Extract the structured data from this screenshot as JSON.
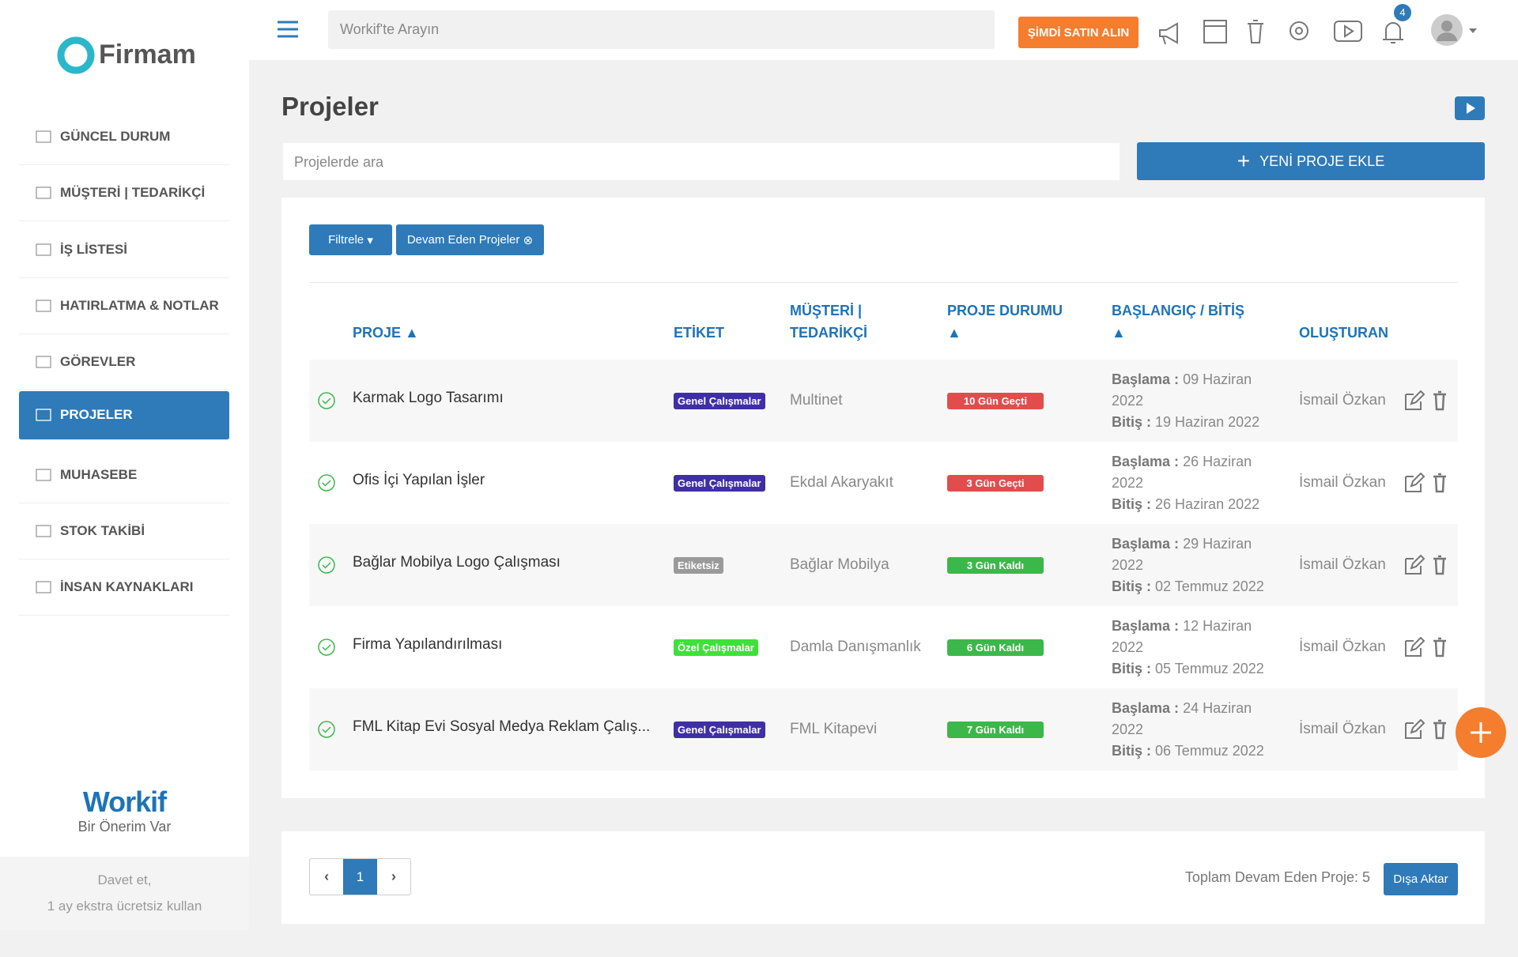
{
  "sidebar": {
    "logo": "Firmam",
    "items": [
      "GÜNCEL DURUM",
      "MÜŞTERİ | TEDARİKÇİ",
      "İŞ LİSTESİ",
      "HATIRLATMA & NOTLAR",
      "GÖREVLER",
      "PROJELER",
      "MUHASEBE",
      "STOK TAKİBİ",
      "İNSAN KAYNAKLARI"
    ],
    "active": 5,
    "brand": "Workif",
    "brand_tagline": "Bir Önerim Var",
    "invite": [
      "Davet et,",
      "1 ay ekstra ücretsiz kullan"
    ]
  },
  "topbar": {
    "search_placeholder": "Workif'te Arayın",
    "buy_button": "ŞİMDİ SATIN ALIN",
    "notification_count": "4"
  },
  "page": {
    "title": "Projeler",
    "search_placeholder": "Projelerde ara",
    "new_button": "YENİ PROJE EKLE",
    "filter_button": "Filtrele",
    "active_filter": "Devam Eden Projeler"
  },
  "table": {
    "headers": [
      "PROJE",
      "ETİKET",
      "MÜŞTERİ | TEDARİKÇİ",
      "PROJE DURUMU",
      "BAŞLANGIÇ / BİTİŞ",
      "OLUŞTURAN"
    ],
    "date_labels": {
      "start": "Başlama :",
      "end": "Bitiş :"
    },
    "rows": [
      {
        "name": "Karmak Logo Tasarımı",
        "tag": "Genel Çalışmalar",
        "tag_color": "#3f2fa6",
        "customer": "Multinet",
        "status": "10 Gün Geçti",
        "status_color": "#e14d4d",
        "start": "09 Haziran 2022",
        "end": "19 Haziran 2022",
        "creator": "İsmail Özkan"
      },
      {
        "name": "Ofis İçi Yapılan İşler",
        "tag": "Genel Çalışmalar",
        "tag_color": "#3f2fa6",
        "customer": "Ekdal Akaryakıt",
        "status": "3 Gün Geçti",
        "status_color": "#e14d4d",
        "start": "26 Haziran 2022",
        "end": "26 Haziran 2022",
        "creator": "İsmail Özkan"
      },
      {
        "name": "Bağlar Mobilya Logo Çalışması",
        "tag": "Etiketsiz",
        "tag_color": "#9a9a9a",
        "customer": "Bağlar Mobilya",
        "status": "3 Gün Kaldı",
        "status_color": "#3cb84a",
        "start": "29 Haziran 2022",
        "end": "02 Temmuz 2022",
        "creator": "İsmail Özkan"
      },
      {
        "name": "Firma Yapılandırılması",
        "tag": "Özel Çalışmalar",
        "tag_color": "#3fe03a",
        "customer": "Damla Danışmanlık",
        "status": "6 Gün Kaldı",
        "status_color": "#3cb84a",
        "start": "12 Haziran 2022",
        "end": "05 Temmuz 2022",
        "creator": "İsmail Özkan"
      },
      {
        "name": "FML Kitap Evi Sosyal Medya Reklam Çalış...",
        "tag": "Genel Çalışmalar",
        "tag_color": "#3f2fa6",
        "customer": "FML Kitapevi",
        "status": "7 Gün Kaldı",
        "status_color": "#3cb84a",
        "start": "24 Haziran 2022",
        "end": "06 Temmuz 2022",
        "creator": "İsmail Özkan"
      }
    ]
  },
  "footer": {
    "current_page": "1",
    "total_text": "Toplam Devam Eden Proje: 5",
    "export_button": "Dışa Aktar"
  }
}
